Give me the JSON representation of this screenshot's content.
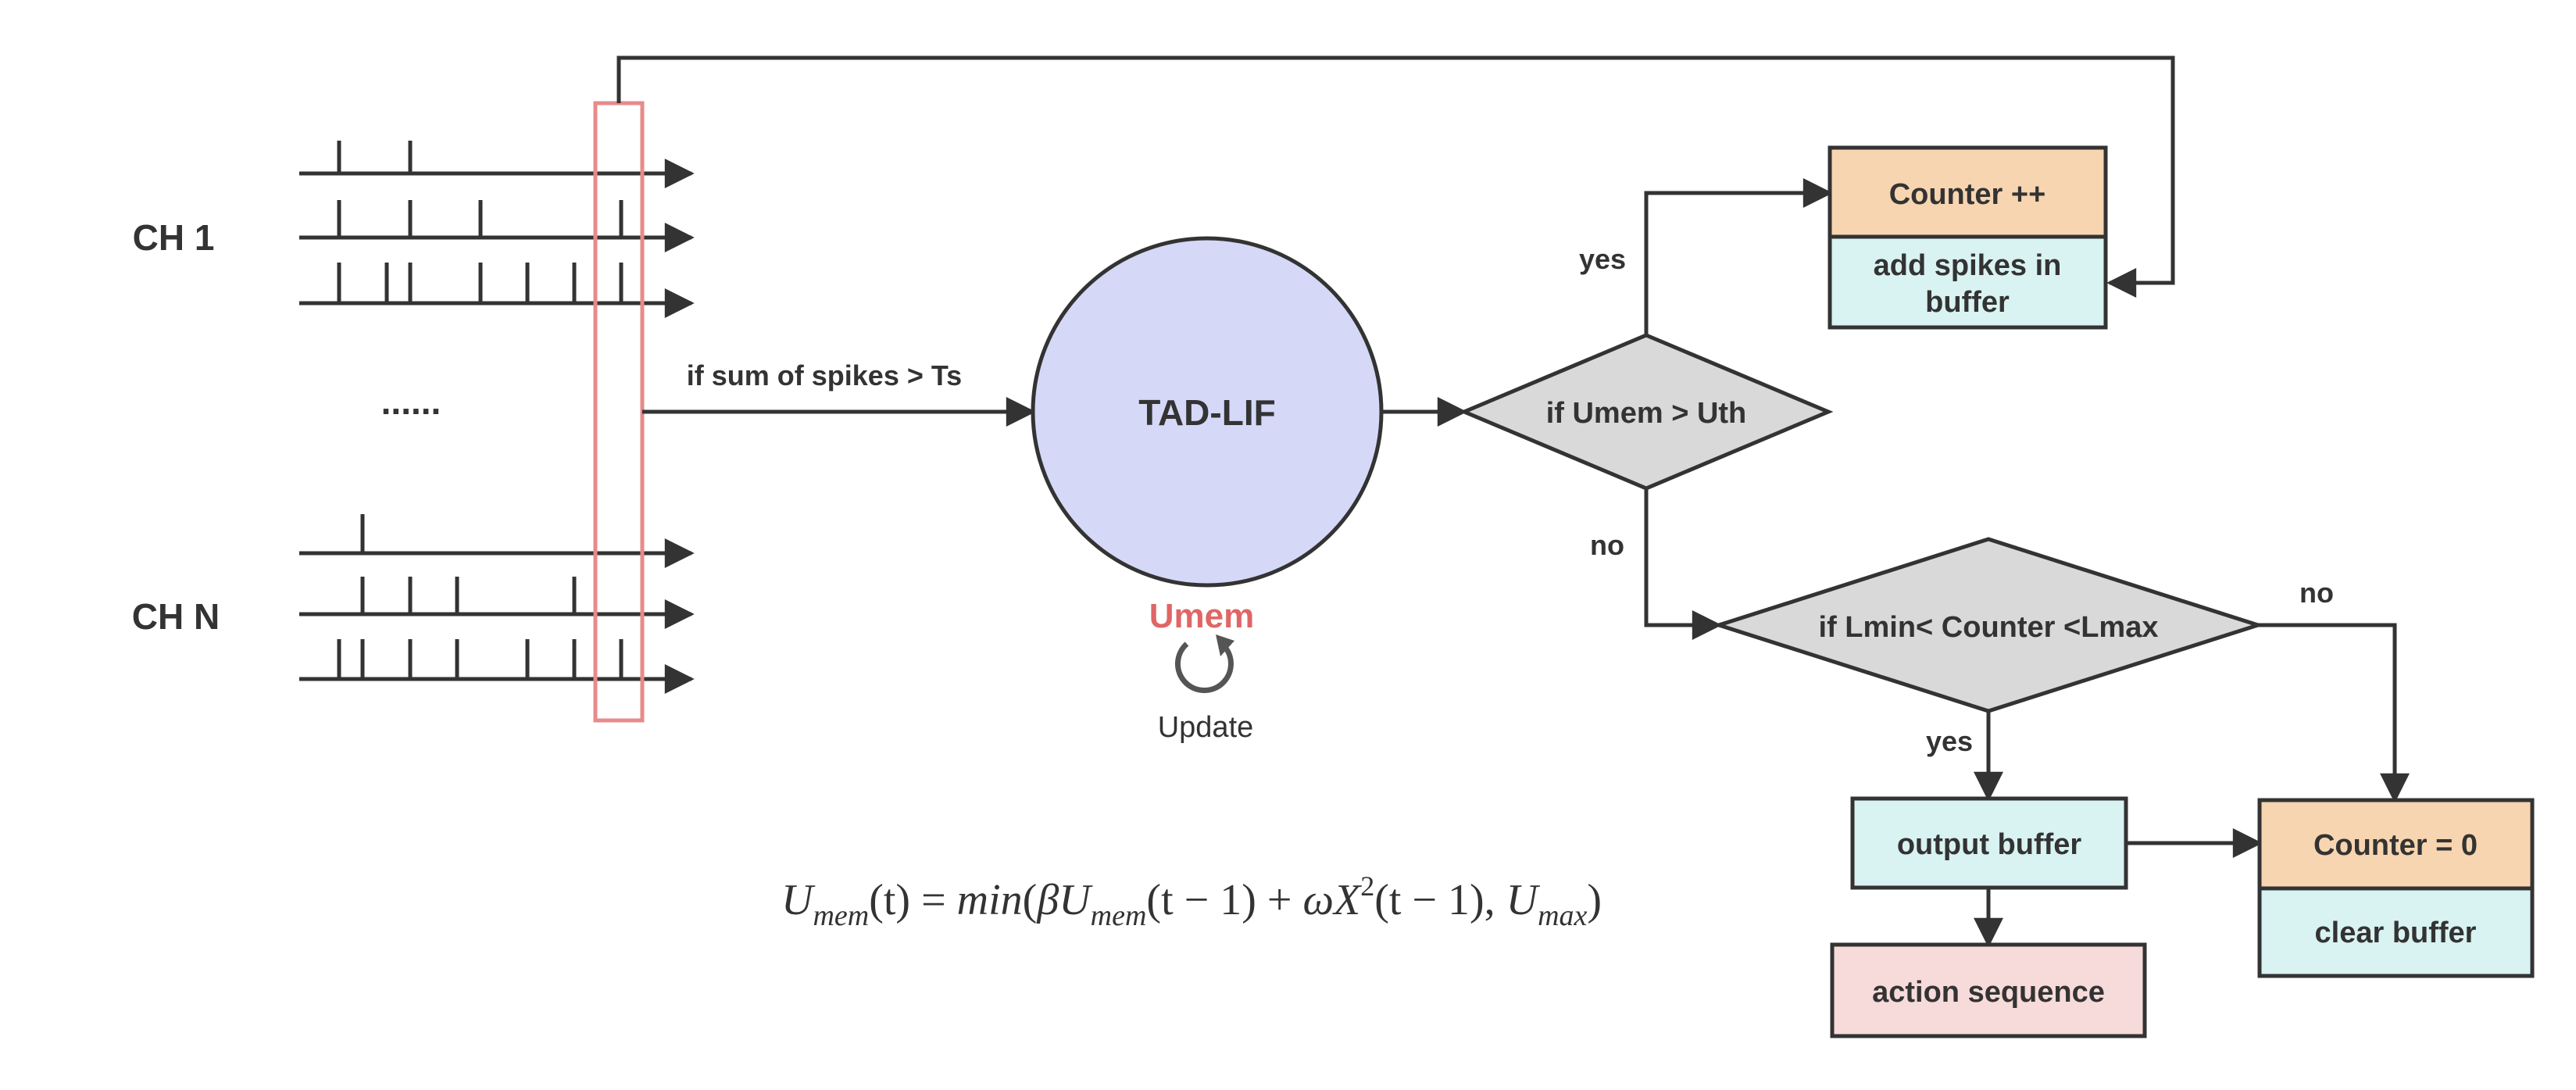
{
  "channels": {
    "top": "CH 1",
    "bottom": "CH N",
    "ellipsis": "......"
  },
  "edges": {
    "to_lif": "if sum of spikes > Ts",
    "yes1": "yes",
    "no1": "no",
    "yes2": "yes",
    "no2": "no"
  },
  "nodes": {
    "lif": "TAD-LIF",
    "decision1": "if Umem > Uth",
    "decision2": "if Lmin< Counter <Lmax",
    "counter_inc": "Counter ++",
    "add_spikes_line1": "add spikes in",
    "add_spikes_line2": "buffer",
    "output_buffer": "output buffer",
    "action_sequence": "action sequence",
    "counter_zero": "Counter = 0",
    "clear_buffer": "clear buffer"
  },
  "update_loop": {
    "label": "Umem",
    "caption": "Update"
  },
  "equation": {
    "U": "U",
    "mem": "mem",
    "t_open": "(t) = ",
    "min": "min",
    "open": "(",
    "beta": "β",
    "U2": "U",
    "mem2": "mem",
    "t_minus": "(t − 1) + ",
    "omega": "ω",
    "X": "X",
    "sq": "2",
    "t_minus2": "(t − 1), ",
    "U3": "U",
    "max": "max",
    "close": ")"
  },
  "colors": {
    "lif_fill": "#d5d8f7",
    "decision_fill": "#d9d9d9",
    "orange_fill": "#f7d5b0",
    "cyan_fill": "#d9f2f2",
    "pink_fill": "#f7dada",
    "window_stroke": "#e88a8a",
    "line": "#333333"
  }
}
